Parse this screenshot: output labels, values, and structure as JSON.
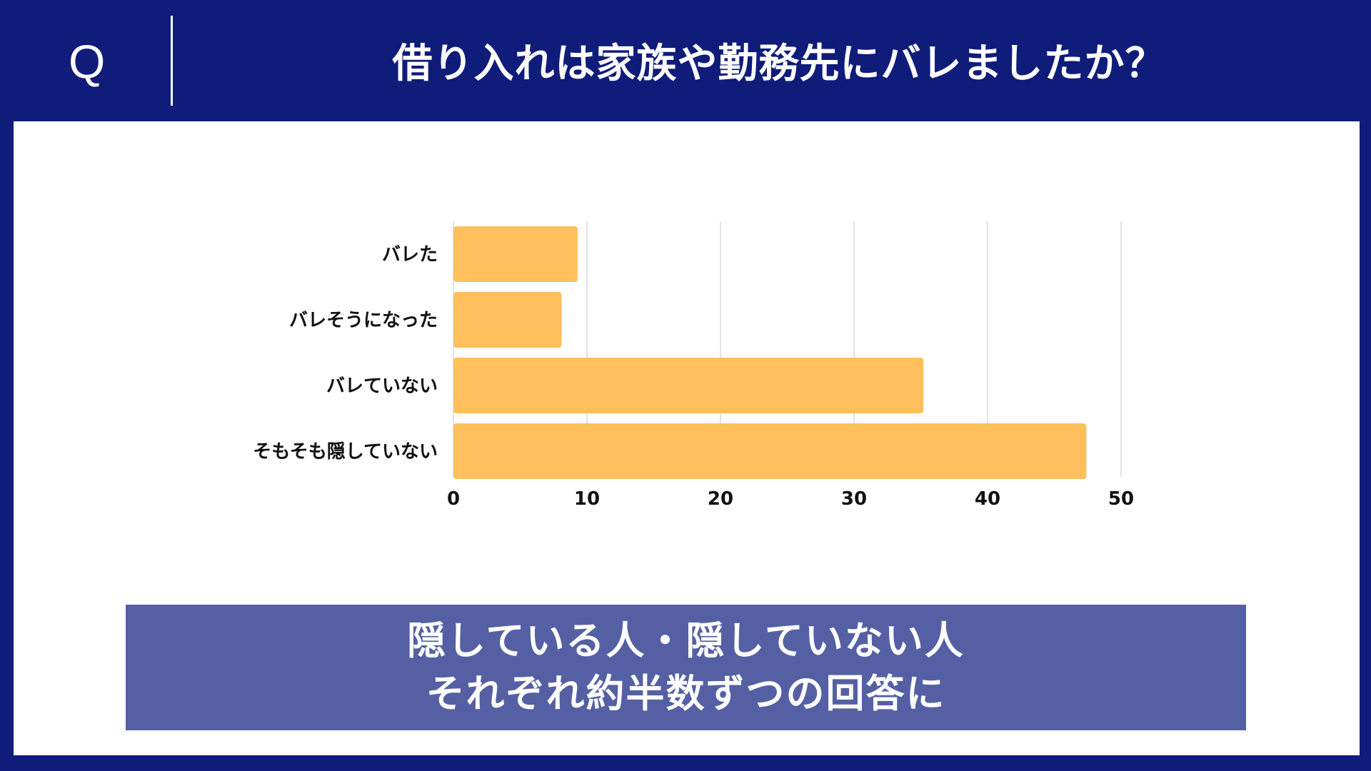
{
  "header": {
    "q_label": "Q",
    "question": "借り入れは家族や勤務先にバレましたか？"
  },
  "colors": {
    "background": "#101c7a",
    "bar": "#ffbf5c",
    "conclusion_bg": "#5560a4",
    "grid": "#d9d9d9"
  },
  "chart_data": {
    "type": "bar",
    "orientation": "horizontal",
    "categories": [
      "バレた",
      "バレそうになった",
      "バレていない",
      "そもそも隠していない"
    ],
    "values": [
      9.3,
      8.1,
      35.2,
      47.4
    ],
    "xlim": [
      0,
      50
    ],
    "xticks": [
      "0",
      "10",
      "20",
      "30",
      "40",
      "50"
    ],
    "grid": true,
    "legend": "none"
  },
  "conclusion": {
    "line1": "隠している人・隠していない人",
    "line2": "それぞれ約半数ずつの回答に"
  }
}
